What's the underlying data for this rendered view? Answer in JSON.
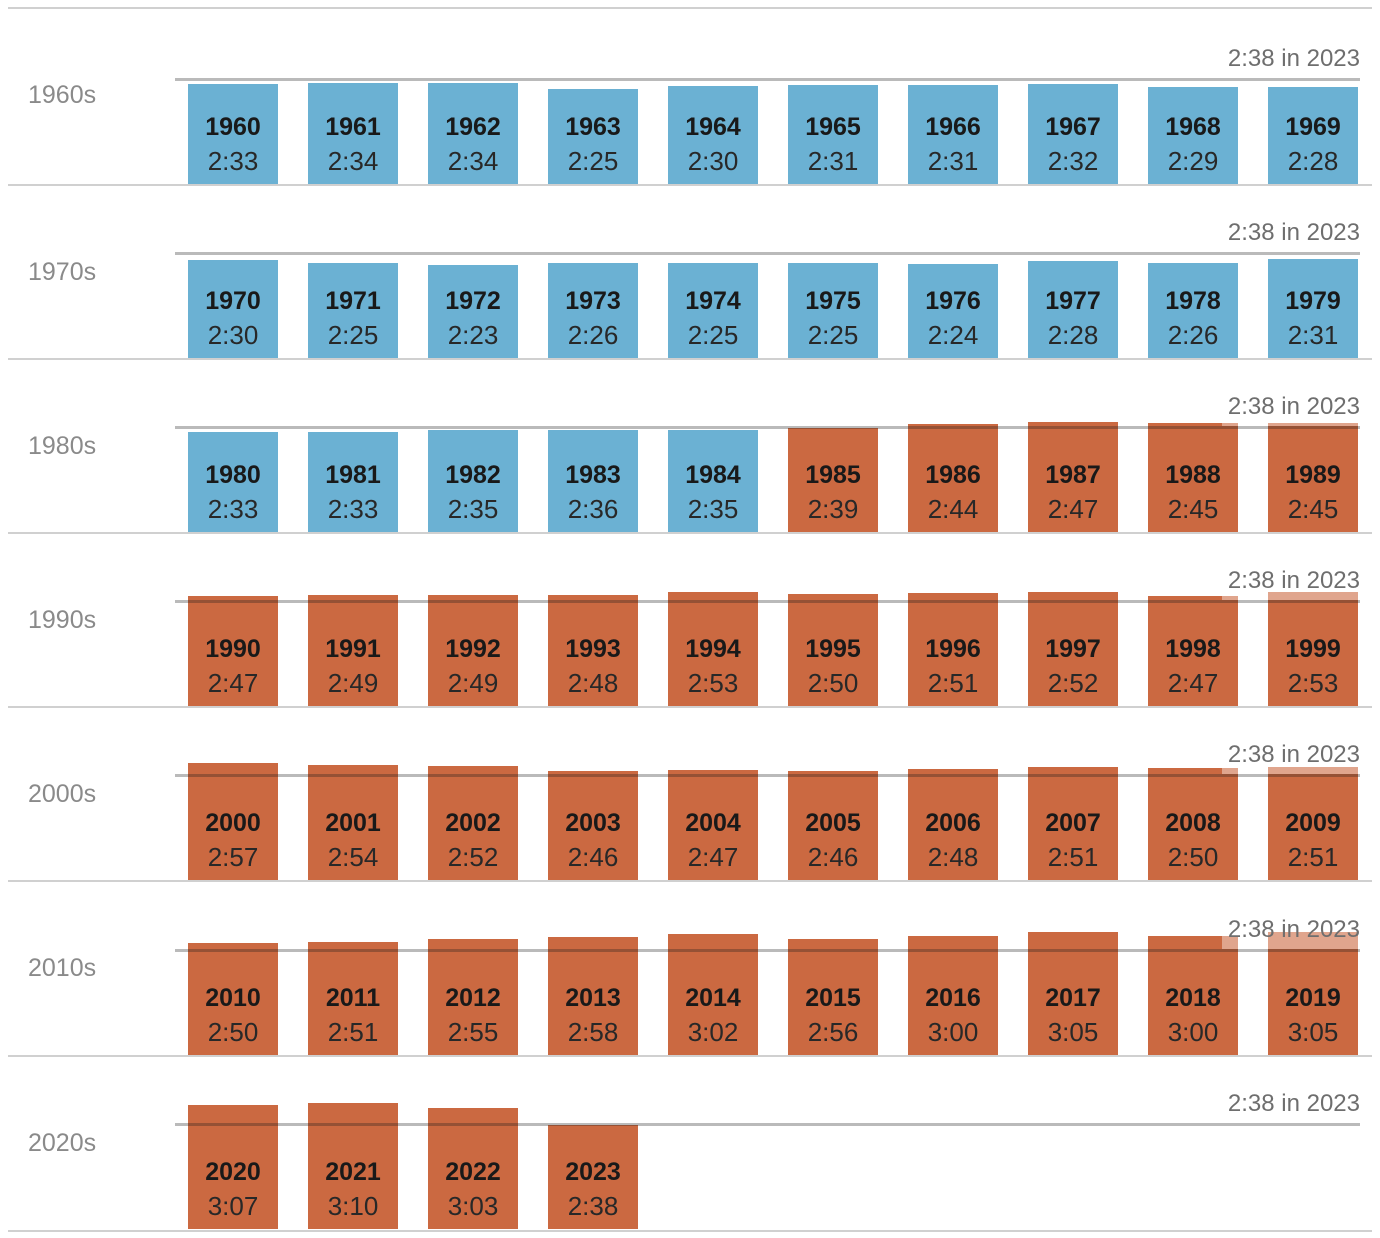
{
  "chart_data": {
    "type": "bar",
    "description": "Average game length by year, grouped in decade rows",
    "reference_line": {
      "value": "2:38",
      "label": "2:38 in 2023"
    },
    "colors": {
      "below_reference": "#6bb1d3",
      "above_reference": "#cb6941"
    },
    "decades": [
      {
        "label": "1960s",
        "years": [
          {
            "year": "1960",
            "time": "2:33"
          },
          {
            "year": "1961",
            "time": "2:34"
          },
          {
            "year": "1962",
            "time": "2:34"
          },
          {
            "year": "1963",
            "time": "2:25"
          },
          {
            "year": "1964",
            "time": "2:30"
          },
          {
            "year": "1965",
            "time": "2:31"
          },
          {
            "year": "1966",
            "time": "2:31"
          },
          {
            "year": "1967",
            "time": "2:32"
          },
          {
            "year": "1968",
            "time": "2:29"
          },
          {
            "year": "1969",
            "time": "2:28"
          }
        ]
      },
      {
        "label": "1970s",
        "years": [
          {
            "year": "1970",
            "time": "2:30"
          },
          {
            "year": "1971",
            "time": "2:25"
          },
          {
            "year": "1972",
            "time": "2:23"
          },
          {
            "year": "1973",
            "time": "2:26"
          },
          {
            "year": "1974",
            "time": "2:25"
          },
          {
            "year": "1975",
            "time": "2:25"
          },
          {
            "year": "1976",
            "time": "2:24"
          },
          {
            "year": "1977",
            "time": "2:28"
          },
          {
            "year": "1978",
            "time": "2:26"
          },
          {
            "year": "1979",
            "time": "2:31"
          }
        ]
      },
      {
        "label": "1980s",
        "years": [
          {
            "year": "1980",
            "time": "2:33"
          },
          {
            "year": "1981",
            "time": "2:33"
          },
          {
            "year": "1982",
            "time": "2:35"
          },
          {
            "year": "1983",
            "time": "2:36"
          },
          {
            "year": "1984",
            "time": "2:35"
          },
          {
            "year": "1985",
            "time": "2:39"
          },
          {
            "year": "1986",
            "time": "2:44"
          },
          {
            "year": "1987",
            "time": "2:47"
          },
          {
            "year": "1988",
            "time": "2:45"
          },
          {
            "year": "1989",
            "time": "2:45"
          }
        ]
      },
      {
        "label": "1990s",
        "years": [
          {
            "year": "1990",
            "time": "2:47"
          },
          {
            "year": "1991",
            "time": "2:49"
          },
          {
            "year": "1992",
            "time": "2:49"
          },
          {
            "year": "1993",
            "time": "2:48"
          },
          {
            "year": "1994",
            "time": "2:53"
          },
          {
            "year": "1995",
            "time": "2:50"
          },
          {
            "year": "1996",
            "time": "2:51"
          },
          {
            "year": "1997",
            "time": "2:52"
          },
          {
            "year": "1998",
            "time": "2:47"
          },
          {
            "year": "1999",
            "time": "2:53"
          }
        ]
      },
      {
        "label": "2000s",
        "years": [
          {
            "year": "2000",
            "time": "2:57"
          },
          {
            "year": "2001",
            "time": "2:54"
          },
          {
            "year": "2002",
            "time": "2:52"
          },
          {
            "year": "2003",
            "time": "2:46"
          },
          {
            "year": "2004",
            "time": "2:47"
          },
          {
            "year": "2005",
            "time": "2:46"
          },
          {
            "year": "2006",
            "time": "2:48"
          },
          {
            "year": "2007",
            "time": "2:51"
          },
          {
            "year": "2008",
            "time": "2:50"
          },
          {
            "year": "2009",
            "time": "2:51"
          }
        ]
      },
      {
        "label": "2010s",
        "years": [
          {
            "year": "2010",
            "time": "2:50"
          },
          {
            "year": "2011",
            "time": "2:51"
          },
          {
            "year": "2012",
            "time": "2:55"
          },
          {
            "year": "2013",
            "time": "2:58"
          },
          {
            "year": "2014",
            "time": "3:02"
          },
          {
            "year": "2015",
            "time": "2:56"
          },
          {
            "year": "2016",
            "time": "3:00"
          },
          {
            "year": "2017",
            "time": "3:05"
          },
          {
            "year": "2018",
            "time": "3:00"
          },
          {
            "year": "2019",
            "time": "3:05"
          }
        ]
      },
      {
        "label": "2020s",
        "years": [
          {
            "year": "2020",
            "time": "3:07"
          },
          {
            "year": "2021",
            "time": "3:10"
          },
          {
            "year": "2022",
            "time": "3:03"
          },
          {
            "year": "2023",
            "time": "2:38"
          }
        ]
      }
    ]
  }
}
